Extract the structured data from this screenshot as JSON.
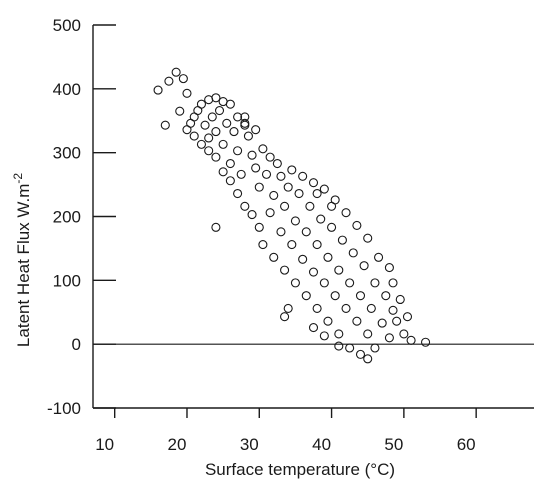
{
  "chart_data": {
    "type": "scatter",
    "title": "",
    "xlabel": "Surface temperature (°C)",
    "ylabel_main": "Latent Heat Flux W.m",
    "ylabel_sup": "-2",
    "xlim": [
      7,
      68
    ],
    "ylim": [
      -100,
      500
    ],
    "xticks": [
      10,
      20,
      30,
      40,
      50,
      60
    ],
    "xtick_labels": [
      "10",
      "20",
      "30",
      "40",
      "50",
      "60"
    ],
    "yticks": [
      -100,
      0,
      100,
      200,
      300,
      400,
      500
    ],
    "ytick_labels": [
      "-100",
      "0",
      "100",
      "200",
      "300",
      "400",
      "500"
    ],
    "zero_line": true,
    "grid": false,
    "marker": "open-circle",
    "colors": {
      "marks": "#1a1a1a",
      "background": "#ffffff"
    },
    "series": [
      {
        "points": [
          [
            16.0,
            398
          ],
          [
            17.5,
            412
          ],
          [
            18.5,
            426
          ],
          [
            19.5,
            416
          ],
          [
            17.0,
            343
          ],
          [
            19.0,
            365
          ],
          [
            20.0,
            393
          ],
          [
            20.0,
            336
          ],
          [
            20.5,
            346
          ],
          [
            21.0,
            356
          ],
          [
            21.0,
            326
          ],
          [
            21.5,
            366
          ],
          [
            22.0,
            376
          ],
          [
            22.0,
            313
          ],
          [
            22.5,
            343
          ],
          [
            23.0,
            383
          ],
          [
            23.0,
            323
          ],
          [
            23.0,
            303
          ],
          [
            23.5,
            356
          ],
          [
            24.0,
            386
          ],
          [
            24.0,
            333
          ],
          [
            24.0,
            293
          ],
          [
            24.5,
            366
          ],
          [
            25.0,
            380
          ],
          [
            25.0,
            313
          ],
          [
            25.0,
            270
          ],
          [
            25.5,
            346
          ],
          [
            26.0,
            376
          ],
          [
            26.0,
            283
          ],
          [
            26.0,
            256
          ],
          [
            26.5,
            333
          ],
          [
            27.0,
            356
          ],
          [
            27.0,
            303
          ],
          [
            27.0,
            236
          ],
          [
            27.5,
            266
          ],
          [
            28.0,
            346
          ],
          [
            28.0,
            216
          ],
          [
            28.5,
            326
          ],
          [
            29.0,
            296
          ],
          [
            29.0,
            203
          ],
          [
            29.5,
            276
          ],
          [
            29.5,
            336
          ],
          [
            30.0,
            246
          ],
          [
            30.0,
            183
          ],
          [
            30.5,
            306
          ],
          [
            30.5,
            156
          ],
          [
            31.0,
            266
          ],
          [
            31.5,
            206
          ],
          [
            31.5,
            293
          ],
          [
            32.0,
            233
          ],
          [
            32.0,
            136
          ],
          [
            32.5,
            283
          ],
          [
            33.0,
            176
          ],
          [
            33.0,
            263
          ],
          [
            33.5,
            216
          ],
          [
            33.5,
            116
          ],
          [
            34.0,
            246
          ],
          [
            34.5,
            156
          ],
          [
            34.5,
            273
          ],
          [
            35.0,
            193
          ],
          [
            35.0,
            96
          ],
          [
            35.5,
            236
          ],
          [
            36.0,
            133
          ],
          [
            36.0,
            263
          ],
          [
            36.5,
            176
          ],
          [
            36.5,
            76
          ],
          [
            37.0,
            216
          ],
          [
            37.5,
            113
          ],
          [
            37.5,
            253
          ],
          [
            38.0,
            156
          ],
          [
            38.0,
            56
          ],
          [
            38.5,
            196
          ],
          [
            39.0,
            96
          ],
          [
            39.0,
            243
          ],
          [
            39.5,
            136
          ],
          [
            39.5,
            36
          ],
          [
            40.0,
            183
          ],
          [
            40.5,
            76
          ],
          [
            40.5,
            226
          ],
          [
            41.0,
            116
          ],
          [
            41.0,
            16
          ],
          [
            41.5,
            163
          ],
          [
            42.0,
            56
          ],
          [
            42.0,
            206
          ],
          [
            42.5,
            96
          ],
          [
            42.5,
            -6
          ],
          [
            43.0,
            143
          ],
          [
            43.5,
            36
          ],
          [
            43.5,
            186
          ],
          [
            44.0,
            76
          ],
          [
            44.0,
            -16
          ],
          [
            44.5,
            123
          ],
          [
            45.0,
            16
          ],
          [
            45.0,
            166
          ],
          [
            45.5,
            56
          ],
          [
            46.0,
            96
          ],
          [
            46.0,
            -6
          ],
          [
            46.5,
            136
          ],
          [
            47.0,
            33
          ],
          [
            47.5,
            76
          ],
          [
            48.0,
            10
          ],
          [
            48.5,
            53
          ],
          [
            49.0,
            36
          ],
          [
            49.5,
            70
          ],
          [
            50.0,
            16
          ],
          [
            50.5,
            43
          ],
          [
            51.0,
            6
          ],
          [
            53.0,
            3
          ],
          [
            24.0,
            183
          ],
          [
            28.0,
            356
          ],
          [
            28.0,
            343
          ],
          [
            37.5,
            26
          ],
          [
            39.0,
            13
          ],
          [
            41.0,
            -3
          ],
          [
            45.0,
            -23
          ],
          [
            48.0,
            120
          ],
          [
            48.5,
            96
          ],
          [
            34.0,
            56
          ],
          [
            33.5,
            43
          ],
          [
            40.0,
            216
          ],
          [
            38.0,
            236
          ]
        ]
      }
    ]
  }
}
